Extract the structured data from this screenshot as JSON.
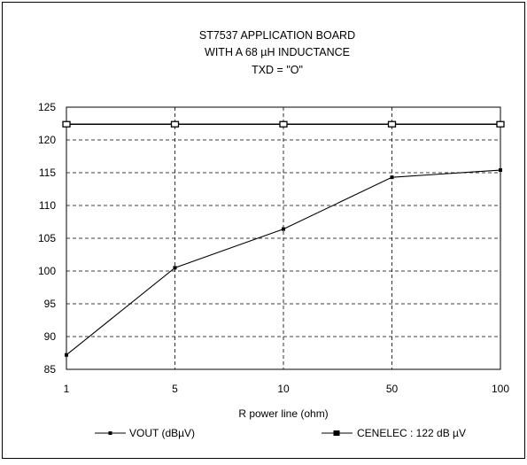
{
  "chart_data": {
    "type": "line",
    "title_lines": [
      "ST7537 APPLICATION BOARD",
      "WITH A 68 µH INDUCTANCE",
      "TXD = \"O\""
    ],
    "xlabel": "R power line (ohm)",
    "ylabel": "",
    "categories": [
      "1",
      "5",
      "10",
      "50",
      "100"
    ],
    "ylim": [
      85,
      125
    ],
    "yticks": [
      85,
      90,
      95,
      100,
      105,
      110,
      115,
      120,
      125
    ],
    "grid": true,
    "legend_position": "bottom",
    "series": [
      {
        "name": "VOUT (dBµV)",
        "values": [
          87.2,
          100.5,
          106.4,
          114.3,
          115.4
        ],
        "color": "#000000",
        "marker": "small-filled-square"
      },
      {
        "name": "CENELEC : 122 dB µV",
        "values": [
          122.4,
          122.4,
          122.4,
          122.4,
          122.4
        ],
        "color": "#000000",
        "marker": "hollow-square"
      }
    ]
  }
}
